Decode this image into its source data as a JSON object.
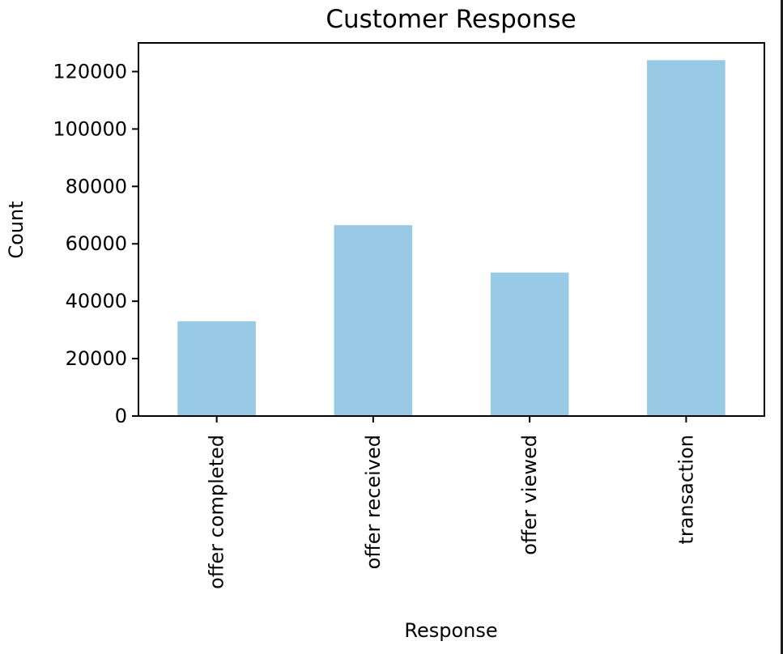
{
  "chart_data": {
    "type": "bar",
    "title": "Customer Response",
    "xlabel": "Response",
    "ylabel": "Count",
    "categories": [
      "offer completed",
      "offer received",
      "offer viewed",
      "transaction"
    ],
    "values": [
      33000,
      66500,
      50000,
      124000
    ],
    "ylim": [
      0,
      130000
    ],
    "yticks": [
      0,
      20000,
      40000,
      60000,
      80000,
      100000,
      120000
    ],
    "ytick_labels": [
      "0",
      "20000",
      "40000",
      "60000",
      "80000",
      "100000",
      "120000"
    ],
    "bar_color": "#98cae6",
    "grid": false,
    "legend": "none"
  }
}
